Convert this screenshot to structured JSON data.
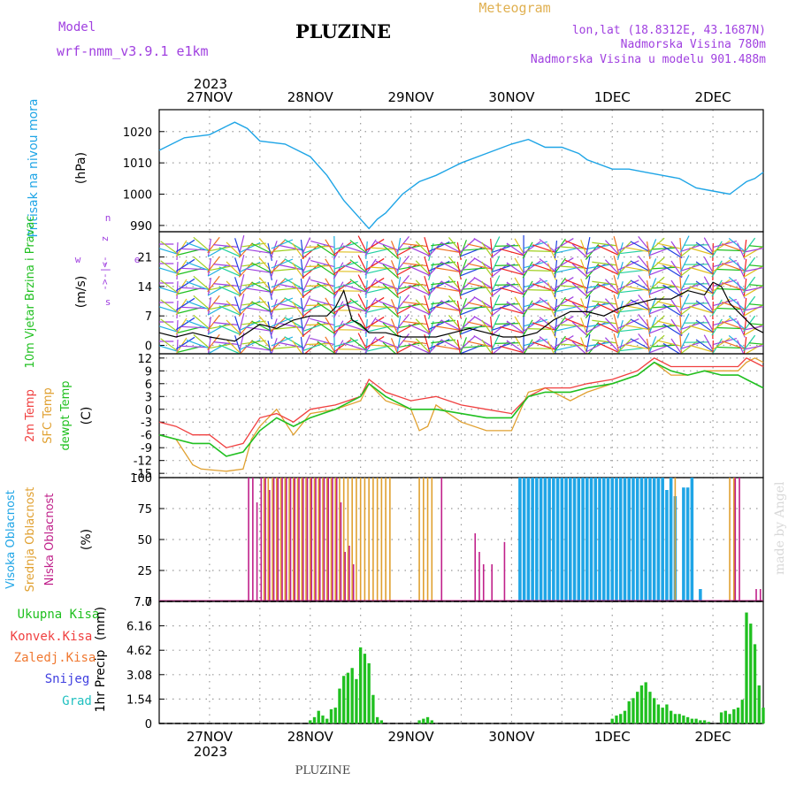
{
  "header": {
    "model_label": "Model",
    "model_name": "wrf-nmm_v3.9.1 e1km",
    "station": "PLUZINE",
    "title": "Meteogram",
    "lonlat": "lon,lat (18.8312E, 43.1687N)",
    "altitude": "Nadmorska Visina 780m",
    "model_altitude": "Nadmorska Visina u modelu 901.488m",
    "year": "2023",
    "footer": "PLUZINE",
    "credit": "made by Angel"
  },
  "colors": {
    "pressure": "#1fa5e6",
    "temp2m": "#f04040",
    "sfctemp": "#e0a030",
    "dewpt": "#20c020",
    "high_cloud": "#1fa5e6",
    "mid_cloud": "#e0a030",
    "low_cloud": "#c0208a",
    "total_precip": "#20c020",
    "conv_precip": "#f04040",
    "ice_precip": "#f07830",
    "snow": "#4040e0",
    "hail": "#20c0c0",
    "wind_direction": "#a040e0"
  },
  "chart_data": {
    "x_axis": {
      "start_hour": -12,
      "end_hour": 132,
      "tick_labels": [
        "27NOV",
        "28NOV",
        "29NOV",
        "30NOV",
        "1DEC",
        "2DEC"
      ],
      "tick_hours": [
        0,
        24,
        48,
        72,
        96,
        120
      ]
    },
    "panels": [
      {
        "id": "pressure",
        "type": "line",
        "ylabel": "Pritisak na nivou mora",
        "unit": "(hPa)",
        "ylim": [
          988,
          1027
        ],
        "yticks": [
          "990",
          "1000",
          "1010",
          "1020"
        ],
        "series": [
          {
            "name": "pressure",
            "x": [
              -12,
              -6,
              0,
              3,
              6,
              9,
              12,
              18,
              24,
              28,
              32,
              36,
              38,
              40,
              42,
              46,
              50,
              54,
              60,
              66,
              72,
              76,
              80,
              84,
              88,
              90,
              96,
              100,
              104,
              108,
              112,
              116,
              120,
              124,
              126,
              128,
              130,
              132
            ],
            "y": [
              1014,
              1018,
              1019,
              1021,
              1023,
              1021,
              1017,
              1016,
              1012,
              1006,
              998,
              992,
              989,
              992,
              994,
              1000,
              1004,
              1006,
              1010,
              1013,
              1016,
              1017.5,
              1015,
              1015,
              1013,
              1011,
              1008,
              1008,
              1007,
              1006,
              1005,
              1002,
              1001,
              1000,
              1002,
              1004,
              1005,
              1007
            ]
          }
        ]
      },
      {
        "id": "wind",
        "type": "line",
        "ylabel": "10m Vjetar Brzina i Pravac",
        "unit": "(m/s)",
        "ylim": [
          -2,
          27
        ],
        "yticks": [
          "0",
          "7",
          "14",
          "21"
        ],
        "direction_labels": [
          "z",
          "<-",
          "-|-",
          "->",
          "w",
          "s",
          "n",
          "e"
        ],
        "series": [
          {
            "name": "wind speed",
            "x": [
              -12,
              -8,
              -4,
              0,
              6,
              12,
              16,
              20,
              24,
              28,
              30,
              32,
              34,
              36,
              38,
              42,
              46,
              50,
              54,
              58,
              62,
              66,
              70,
              74,
              78,
              82,
              86,
              90,
              94,
              98,
              102,
              106,
              110,
              114,
              118,
              120,
              122,
              124,
              126,
              128,
              130,
              132
            ],
            "y": [
              3,
              2,
              3,
              2,
              1,
              5,
              4,
              6,
              7,
              7,
              9,
              13,
              6,
              5,
              3,
              3,
              2,
              2,
              2,
              3,
              4,
              3,
              2,
              2,
              3,
              6,
              8,
              8,
              7,
              9,
              10,
              11,
              11,
              13,
              12,
              15,
              14,
              10,
              8,
              6,
              4,
              3
            ]
          }
        ],
        "barbs": {
          "count": 150,
          "speed_max": 27
        }
      },
      {
        "id": "temperature",
        "type": "line",
        "ylabel_lines": [
          "2m Temp",
          "SFC Temp",
          "dewpt Temp"
        ],
        "unit": "(C)",
        "ylim": [
          -16,
          13
        ],
        "yticks": [
          "-15",
          "-12",
          "-9",
          "-6",
          "-3",
          "0",
          "3",
          "6",
          "9",
          "12"
        ],
        "series": [
          {
            "name": "2m Temp",
            "x": [
              -12,
              -8,
              -4,
              0,
              4,
              8,
              12,
              16,
              20,
              24,
              30,
              36,
              38,
              42,
              48,
              54,
              60,
              66,
              72,
              76,
              80,
              86,
              90,
              96,
              102,
              106,
              110,
              114,
              118,
              122,
              126,
              128,
              132
            ],
            "y": [
              -3,
              -4,
              -6,
              -6,
              -9,
              -8,
              -2,
              -1,
              -3,
              0,
              1,
              3,
              7,
              4,
              2,
              3,
              1,
              0,
              -1,
              3,
              5,
              5,
              6,
              7,
              9,
              12,
              10,
              10,
              10,
              10,
              10,
              12,
              10
            ]
          },
          {
            "name": "SFC Temp",
            "x": [
              -12,
              -8,
              -4,
              -2,
              4,
              8,
              10,
              12,
              16,
              20,
              24,
              30,
              36,
              38,
              42,
              48,
              50,
              52,
              54,
              60,
              66,
              72,
              76,
              80,
              86,
              90,
              96,
              102,
              106,
              110,
              114,
              118,
              122,
              126,
              128,
              130,
              132
            ],
            "y": [
              -6,
              -7,
              -13,
              -14,
              -14.5,
              -14,
              -7,
              -4,
              0,
              -6,
              -1,
              0,
              2,
              6,
              2,
              0,
              -5,
              -4,
              1,
              -3,
              -5,
              -5,
              4,
              5,
              2,
              4,
              6,
              8,
              11,
              8,
              8,
              9,
              9,
              9,
              11,
              12,
              11
            ]
          },
          {
            "name": "dewpt Temp",
            "x": [
              -12,
              -8,
              -4,
              0,
              4,
              8,
              12,
              16,
              20,
              24,
              30,
              36,
              38,
              42,
              48,
              54,
              60,
              66,
              72,
              76,
              80,
              86,
              90,
              96,
              102,
              106,
              110,
              114,
              118,
              122,
              126,
              128,
              132
            ],
            "y": [
              -6,
              -7,
              -8,
              -8,
              -11,
              -10,
              -5,
              -2,
              -4,
              -2,
              0,
              3,
              6,
              3,
              0,
              0,
              -1,
              -2,
              -2,
              3,
              4,
              4,
              5,
              6,
              8,
              11,
              9,
              8,
              9,
              8,
              8,
              7,
              5
            ]
          }
        ]
      },
      {
        "id": "cloud",
        "type": "bar",
        "ylabel_lines": [
          "Visoka Oblacnost",
          "Srednja Oblacnost",
          "Niska Oblacnost"
        ],
        "unit": "(%)",
        "ylim": [
          0,
          100
        ],
        "yticks": [
          "0",
          "25",
          "50",
          "75",
          "100"
        ],
        "series": [
          {
            "name": "Visoka Oblacnost",
            "x": [
              74,
              75,
              76,
              77,
              78,
              79,
              80,
              81,
              82,
              83,
              84,
              85,
              86,
              87,
              88,
              89,
              90,
              91,
              92,
              93,
              94,
              95,
              96,
              97,
              98,
              99,
              100,
              101,
              102,
              103,
              104,
              105,
              106,
              107,
              108,
              109,
              110,
              111,
              113,
              114,
              115,
              117
            ],
            "y": [
              100,
              100,
              100,
              100,
              100,
              100,
              100,
              100,
              100,
              100,
              100,
              100,
              100,
              100,
              100,
              100,
              100,
              100,
              100,
              100,
              100,
              100,
              100,
              100,
              100,
              100,
              100,
              100,
              100,
              100,
              100,
              100,
              100,
              100,
              100,
              90,
              100,
              85,
              92,
              92,
              100,
              10
            ]
          },
          {
            "name": "Srednja Oblacnost",
            "x": [
              13,
              14,
              15,
              16,
              17,
              18,
              19,
              20,
              21,
              22,
              23,
              24,
              25,
              26,
              27,
              28,
              29,
              30,
              31,
              32,
              33,
              34,
              35,
              36,
              37,
              38,
              39,
              40,
              41,
              42,
              43,
              44,
              45,
              46,
              47,
              48,
              49,
              50,
              51,
              52,
              53,
              111,
              124,
              125
            ],
            "y": [
              100,
              100,
              100,
              100,
              100,
              100,
              100,
              100,
              100,
              100,
              100,
              100,
              100,
              100,
              100,
              100,
              100,
              100,
              100,
              100,
              100,
              100,
              100,
              100,
              100,
              100,
              100,
              100,
              100,
              100,
              100,
              0,
              0,
              0,
              0,
              0,
              0,
              100,
              100,
              100,
              100,
              100,
              100,
              100
            ]
          },
          {
            "name": "Niska Oblacnost",
            "x": [
              9,
              10,
              11,
              12,
              13,
              14,
              15,
              16,
              17,
              18,
              19,
              20,
              21,
              22,
              23,
              24,
              25,
              26,
              27,
              28,
              29,
              30,
              31,
              32,
              33,
              34,
              55,
              63,
              64,
              65,
              67,
              70,
              125,
              126,
              130,
              131
            ],
            "y": [
              100,
              100,
              80,
              100,
              100,
              90,
              100,
              100,
              100,
              100,
              100,
              100,
              100,
              100,
              100,
              100,
              100,
              100,
              100,
              100,
              100,
              100,
              80,
              40,
              45,
              30,
              100,
              55,
              40,
              30,
              30,
              48,
              100,
              100,
              10,
              10
            ]
          }
        ]
      },
      {
        "id": "precip",
        "type": "bar",
        "ylabel": "1hr Precip",
        "unit": "(mm)",
        "ylim": [
          0,
          7.7
        ],
        "yticks": [
          "0",
          "1.54",
          "3.08",
          "4.62",
          "6.16",
          "7.7"
        ],
        "legend": [
          "Ukupna Kisa",
          "Konvek.Kisa",
          "Zaledj.Kisa",
          "Snijeg",
          "Grad"
        ],
        "series": [
          {
            "name": "Ukupna Kisa",
            "x": [
              24,
              25,
              26,
              27,
              28,
              29,
              30,
              31,
              32,
              33,
              34,
              35,
              36,
              37,
              38,
              39,
              40,
              41,
              50,
              51,
              52,
              53,
              96,
              97,
              98,
              99,
              100,
              101,
              102,
              103,
              104,
              105,
              106,
              107,
              108,
              109,
              110,
              111,
              112,
              113,
              114,
              115,
              116,
              117,
              118,
              119,
              122,
              123,
              124,
              125,
              126,
              127,
              128,
              129,
              130,
              131,
              132
            ],
            "y": [
              0.2,
              0.4,
              0.8,
              0.5,
              0.3,
              0.9,
              1.0,
              2.2,
              3.0,
              3.2,
              3.5,
              2.8,
              4.8,
              4.4,
              3.8,
              1.8,
              0.4,
              0.2,
              0.2,
              0.3,
              0.4,
              0.2,
              0.3,
              0.5,
              0.6,
              0.8,
              1.4,
              1.6,
              2.0,
              2.4,
              2.6,
              2.0,
              1.6,
              1.2,
              1.0,
              1.2,
              0.8,
              0.6,
              0.6,
              0.5,
              0.4,
              0.3,
              0.3,
              0.2,
              0.2,
              0.1,
              0.7,
              0.8,
              0.6,
              0.9,
              1.0,
              1.5,
              7.0,
              6.3,
              5.0,
              2.4,
              1.0
            ]
          }
        ]
      }
    ]
  }
}
